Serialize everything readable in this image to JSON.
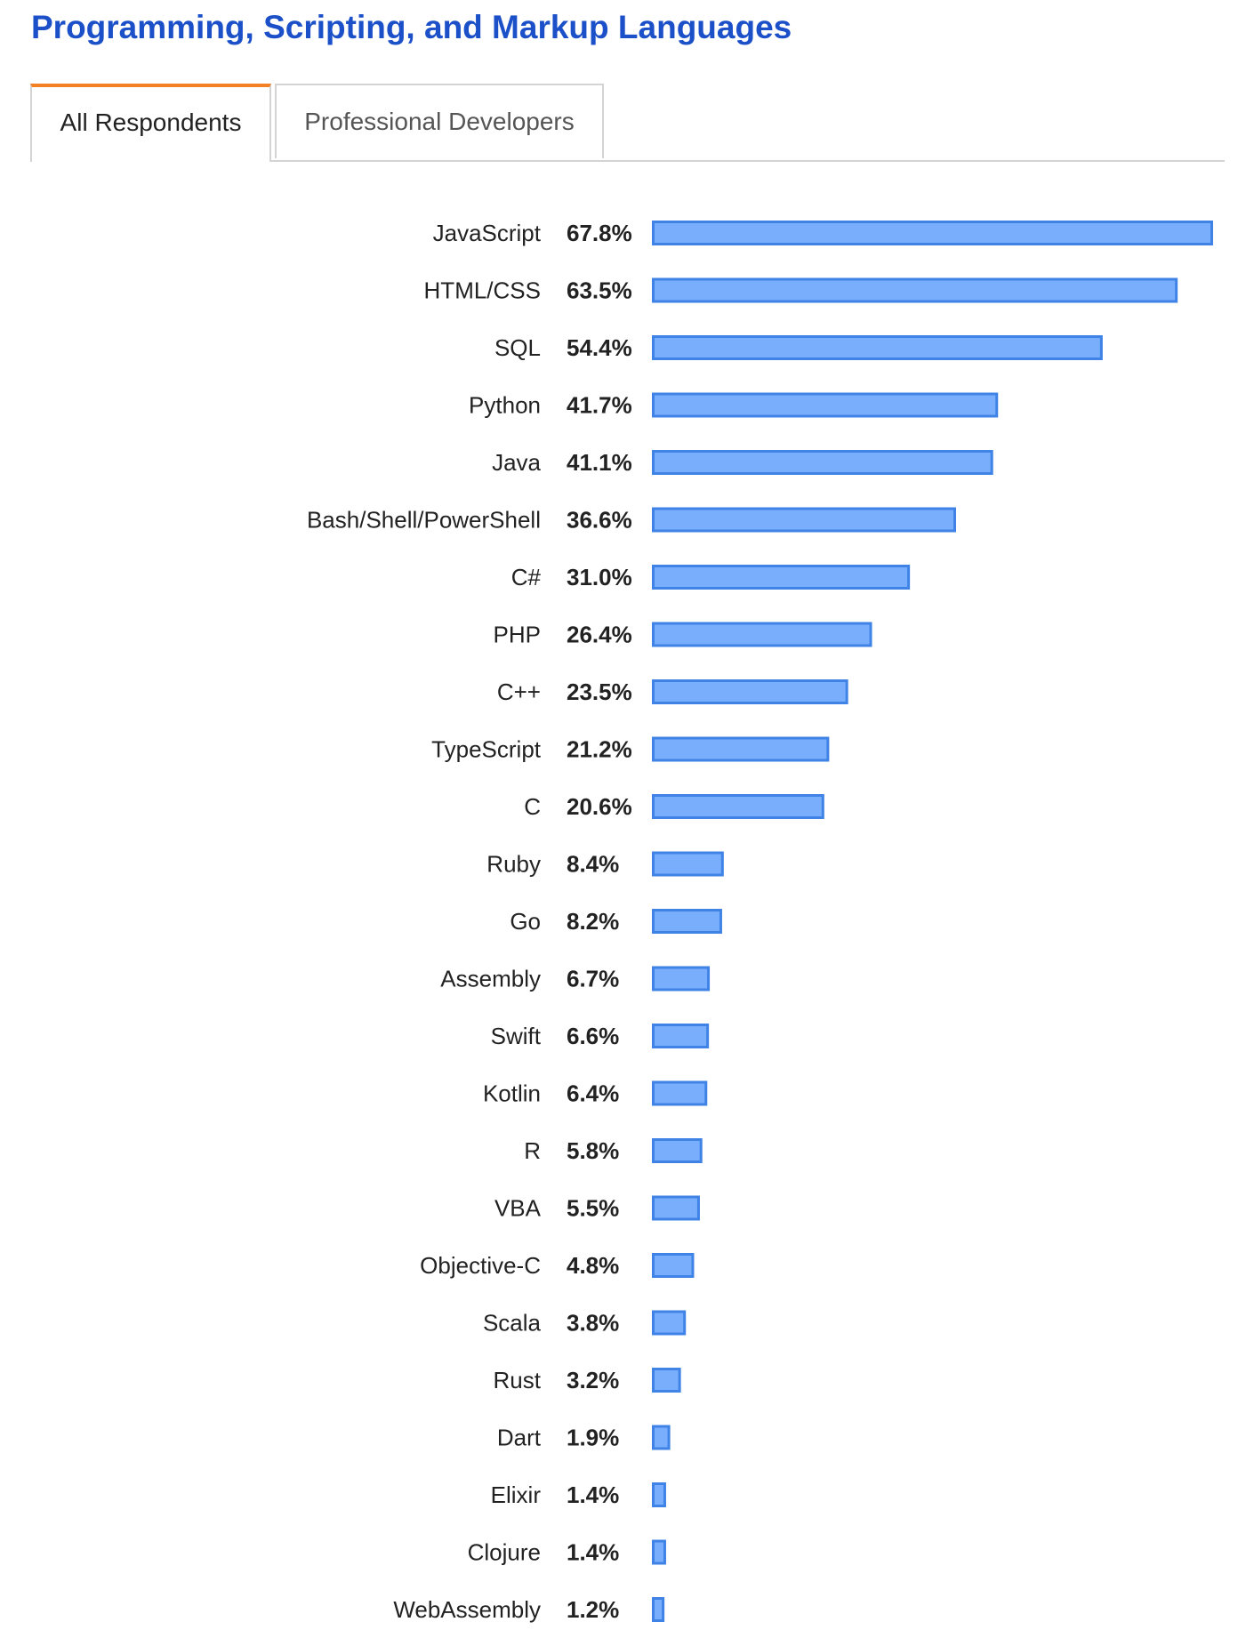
{
  "header": {
    "title": "Programming, Scripting, and Markup Languages"
  },
  "tabs": [
    {
      "label": "All Respondents",
      "active": true
    },
    {
      "label": "Professional Developers",
      "active": false
    }
  ],
  "colors": {
    "title": "#1b50c9",
    "active_tab_accent": "#f48024",
    "bar_fill": "#78aefc",
    "bar_stroke": "#3f83e6"
  },
  "chart_data": {
    "type": "bar",
    "orientation": "horizontal",
    "categories": [
      "JavaScript",
      "HTML/CSS",
      "SQL",
      "Python",
      "Java",
      "Bash/Shell/PowerShell",
      "C#",
      "PHP",
      "C++",
      "TypeScript",
      "C",
      "Ruby",
      "Go",
      "Assembly",
      "Swift",
      "Kotlin",
      "R",
      "VBA",
      "Objective-C",
      "Scala",
      "Rust",
      "Dart",
      "Elixir",
      "Clojure",
      "WebAssembly"
    ],
    "values": [
      67.8,
      63.5,
      54.4,
      41.7,
      41.1,
      36.6,
      31.0,
      26.4,
      23.5,
      21.2,
      20.6,
      8.4,
      8.2,
      6.7,
      6.6,
      6.4,
      5.8,
      5.5,
      4.8,
      3.8,
      3.2,
      1.9,
      1.4,
      1.4,
      1.2
    ],
    "value_labels": [
      "67.8%",
      "63.5%",
      "54.4%",
      "41.7%",
      "41.1%",
      "36.6%",
      "31.0%",
      "26.4%",
      "23.5%",
      "21.2%",
      "20.6%",
      "8.4%",
      "8.2%",
      "6.7%",
      "6.6%",
      "6.4%",
      "5.8%",
      "5.5%",
      "4.8%",
      "3.8%",
      "3.2%",
      "1.9%",
      "1.4%",
      "1.4%",
      "1.2%"
    ],
    "unit": "%",
    "title": "",
    "xlabel": "",
    "ylabel": "",
    "xlim": [
      0,
      67.8
    ],
    "grid": false,
    "legend": "none"
  }
}
